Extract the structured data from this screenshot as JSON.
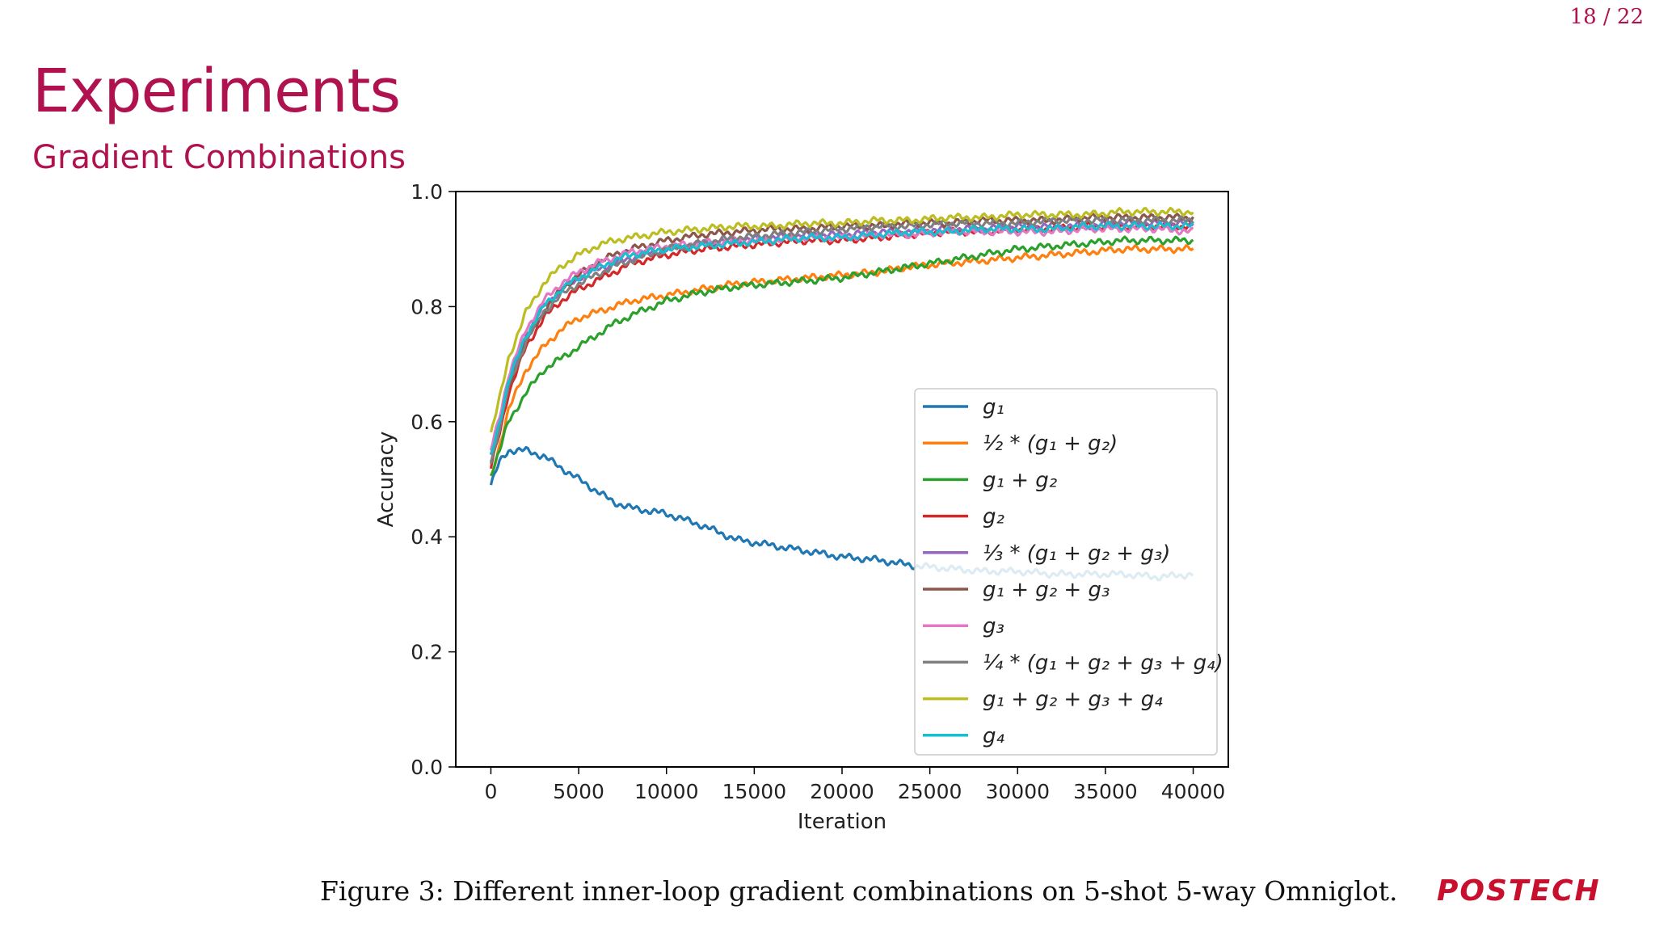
{
  "page": {
    "number": "18 / 22"
  },
  "slide": {
    "title": "Experiments",
    "subtitle": "Gradient Combinations",
    "caption": "Figure 3: Different inner-loop gradient combinations on 5-shot 5-way Omniglot.",
    "logo": "POSTECH"
  },
  "colors": {
    "accent": "#b0124f",
    "logo": "#c8102e"
  },
  "chart_data": {
    "type": "line",
    "title": "",
    "xlabel": "Iteration",
    "ylabel": "Accuracy",
    "xlim": [
      -2000,
      42000
    ],
    "ylim": [
      0.0,
      1.0
    ],
    "xticks": [
      0,
      5000,
      10000,
      15000,
      20000,
      25000,
      30000,
      35000,
      40000
    ],
    "yticks": [
      0.0,
      0.2,
      0.4,
      0.6,
      0.8,
      1.0
    ],
    "legend_position": "lower-right",
    "x": [
      0,
      500,
      1000,
      2000,
      3000,
      4000,
      5000,
      6000,
      7000,
      8000,
      10000,
      12000,
      14000,
      16000,
      18000,
      20000,
      22000,
      24000,
      26000,
      28000,
      30000,
      32000,
      34000,
      36000,
      38000,
      40000
    ],
    "series": [
      {
        "name": "g₁",
        "color": "#1f77b4",
        "values": [
          0.49,
          0.53,
          0.55,
          0.55,
          0.54,
          0.52,
          0.5,
          0.48,
          0.46,
          0.45,
          0.44,
          0.42,
          0.395,
          0.385,
          0.375,
          0.365,
          0.36,
          0.35,
          0.345,
          0.34,
          0.34,
          0.335,
          0.335,
          0.335,
          0.33,
          0.335
        ]
      },
      {
        "name": "½ * (g₁ + g₂)",
        "color": "#ff7f0e",
        "values": [
          0.5,
          0.56,
          0.62,
          0.69,
          0.73,
          0.76,
          0.78,
          0.79,
          0.8,
          0.81,
          0.82,
          0.83,
          0.84,
          0.845,
          0.85,
          0.855,
          0.86,
          0.87,
          0.875,
          0.88,
          0.885,
          0.89,
          0.895,
          0.9,
          0.9,
          0.9
        ]
      },
      {
        "name": "g₁ + g₂",
        "color": "#2ca02c",
        "values": [
          0.51,
          0.55,
          0.6,
          0.65,
          0.69,
          0.71,
          0.73,
          0.75,
          0.77,
          0.785,
          0.81,
          0.825,
          0.835,
          0.84,
          0.845,
          0.85,
          0.86,
          0.87,
          0.88,
          0.89,
          0.9,
          0.905,
          0.91,
          0.915,
          0.915,
          0.915
        ]
      },
      {
        "name": "g₂",
        "color": "#d62728",
        "values": [
          0.52,
          0.58,
          0.65,
          0.73,
          0.78,
          0.81,
          0.83,
          0.845,
          0.86,
          0.875,
          0.89,
          0.9,
          0.905,
          0.91,
          0.915,
          0.915,
          0.92,
          0.925,
          0.93,
          0.93,
          0.935,
          0.935,
          0.94,
          0.94,
          0.94,
          0.94
        ]
      },
      {
        "name": "⅓ * (g₁ + g₂ + g₃)",
        "color": "#9467bd",
        "values": [
          0.54,
          0.6,
          0.67,
          0.75,
          0.8,
          0.83,
          0.85,
          0.865,
          0.875,
          0.885,
          0.9,
          0.91,
          0.915,
          0.92,
          0.925,
          0.925,
          0.93,
          0.93,
          0.935,
          0.935,
          0.94,
          0.94,
          0.94,
          0.945,
          0.945,
          0.945
        ]
      },
      {
        "name": "g₁ + g₂ + g₃",
        "color": "#8c564b",
        "values": [
          0.53,
          0.59,
          0.66,
          0.74,
          0.79,
          0.83,
          0.855,
          0.875,
          0.89,
          0.9,
          0.915,
          0.925,
          0.93,
          0.935,
          0.935,
          0.94,
          0.94,
          0.945,
          0.945,
          0.95,
          0.95,
          0.95,
          0.955,
          0.955,
          0.955,
          0.955
        ]
      },
      {
        "name": "g₃",
        "color": "#e377c2",
        "values": [
          0.55,
          0.61,
          0.68,
          0.76,
          0.81,
          0.84,
          0.86,
          0.875,
          0.885,
          0.895,
          0.905,
          0.91,
          0.915,
          0.915,
          0.92,
          0.92,
          0.925,
          0.925,
          0.93,
          0.93,
          0.93,
          0.93,
          0.935,
          0.935,
          0.935,
          0.93
        ]
      },
      {
        "name": "¼ * (g₁ + g₂ + g₃ + g₄)",
        "color": "#7f7f7f",
        "values": [
          0.53,
          0.59,
          0.66,
          0.74,
          0.79,
          0.82,
          0.84,
          0.855,
          0.87,
          0.88,
          0.9,
          0.91,
          0.92,
          0.925,
          0.93,
          0.935,
          0.94,
          0.94,
          0.945,
          0.945,
          0.945,
          0.95,
          0.95,
          0.95,
          0.95,
          0.95
        ]
      },
      {
        "name": "g₁ + g₂ + g₃ + g₄",
        "color": "#bcbd22",
        "values": [
          0.58,
          0.64,
          0.71,
          0.79,
          0.84,
          0.87,
          0.89,
          0.905,
          0.915,
          0.92,
          0.93,
          0.935,
          0.94,
          0.94,
          0.945,
          0.945,
          0.95,
          0.95,
          0.955,
          0.955,
          0.96,
          0.96,
          0.96,
          0.965,
          0.965,
          0.965
        ]
      },
      {
        "name": "g₄",
        "color": "#17becf",
        "values": [
          0.54,
          0.6,
          0.67,
          0.75,
          0.8,
          0.83,
          0.85,
          0.865,
          0.88,
          0.89,
          0.9,
          0.905,
          0.91,
          0.915,
          0.92,
          0.92,
          0.925,
          0.93,
          0.93,
          0.935,
          0.935,
          0.935,
          0.94,
          0.94,
          0.94,
          0.94
        ]
      }
    ]
  }
}
